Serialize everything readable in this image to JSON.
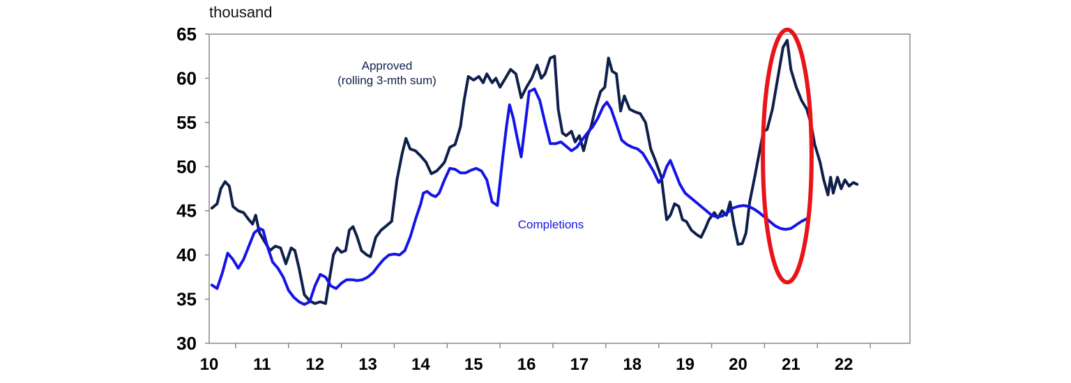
{
  "chart_data": {
    "type": "line",
    "unit_label": "thousand",
    "x_tick_labels": [
      "10",
      "11",
      "12",
      "13",
      "14",
      "15",
      "16",
      "17",
      "18",
      "19",
      "20",
      "21",
      "22"
    ],
    "ylim": [
      30,
      65
    ],
    "y_ticks": [
      30,
      35,
      40,
      45,
      50,
      55,
      60,
      65
    ],
    "xlim": [
      2009.5,
      2022.75
    ],
    "grid": false,
    "series": [
      {
        "name": "Approved",
        "label_lines": [
          "Approved",
          "(rolling 3-mth sum)"
        ],
        "color": "#0f1f4b",
        "points": [
          [
            2009.55,
            45.3
          ],
          [
            2009.65,
            45.8
          ],
          [
            2009.72,
            47.5
          ],
          [
            2009.8,
            48.3
          ],
          [
            2009.88,
            47.8
          ],
          [
            2009.95,
            45.5
          ],
          [
            2010.05,
            45.0
          ],
          [
            2010.15,
            44.8
          ],
          [
            2010.25,
            44.0
          ],
          [
            2010.32,
            43.5
          ],
          [
            2010.38,
            44.5
          ],
          [
            2010.45,
            42.5
          ],
          [
            2010.55,
            41.5
          ],
          [
            2010.65,
            40.5
          ],
          [
            2010.75,
            41.0
          ],
          [
            2010.85,
            40.8
          ],
          [
            2010.95,
            39.0
          ],
          [
            2011.05,
            40.8
          ],
          [
            2011.12,
            40.5
          ],
          [
            2011.2,
            38.5
          ],
          [
            2011.3,
            35.5
          ],
          [
            2011.4,
            34.8
          ],
          [
            2011.5,
            34.5
          ],
          [
            2011.6,
            34.7
          ],
          [
            2011.7,
            34.5
          ],
          [
            2011.78,
            37.5
          ],
          [
            2011.85,
            40.0
          ],
          [
            2011.92,
            40.8
          ],
          [
            2012.0,
            40.3
          ],
          [
            2012.08,
            40.5
          ],
          [
            2012.15,
            42.8
          ],
          [
            2012.22,
            43.2
          ],
          [
            2012.3,
            42.0
          ],
          [
            2012.38,
            40.5
          ],
          [
            2012.48,
            40.0
          ],
          [
            2012.55,
            39.8
          ],
          [
            2012.65,
            42.0
          ],
          [
            2012.75,
            42.8
          ],
          [
            2012.85,
            43.3
          ],
          [
            2012.95,
            43.8
          ],
          [
            2013.05,
            48.5
          ],
          [
            2013.15,
            51.5
          ],
          [
            2013.22,
            53.2
          ],
          [
            2013.3,
            52.0
          ],
          [
            2013.4,
            51.8
          ],
          [
            2013.5,
            51.2
          ],
          [
            2013.6,
            50.5
          ],
          [
            2013.7,
            49.2
          ],
          [
            2013.8,
            49.5
          ],
          [
            2013.88,
            50.0
          ],
          [
            2013.95,
            50.5
          ],
          [
            2014.05,
            52.2
          ],
          [
            2014.15,
            52.5
          ],
          [
            2014.25,
            54.5
          ],
          [
            2014.32,
            57.5
          ],
          [
            2014.4,
            60.2
          ],
          [
            2014.5,
            59.8
          ],
          [
            2014.6,
            60.2
          ],
          [
            2014.68,
            59.5
          ],
          [
            2014.75,
            60.5
          ],
          [
            2014.85,
            59.5
          ],
          [
            2014.92,
            60.0
          ],
          [
            2015.0,
            59.0
          ],
          [
            2015.1,
            60.0
          ],
          [
            2015.2,
            61.0
          ],
          [
            2015.3,
            60.5
          ],
          [
            2015.4,
            57.8
          ],
          [
            2015.5,
            59.0
          ],
          [
            2015.6,
            60.0
          ],
          [
            2015.7,
            61.5
          ],
          [
            2015.78,
            60.0
          ],
          [
            2015.85,
            60.5
          ],
          [
            2015.95,
            62.3
          ],
          [
            2016.03,
            62.5
          ],
          [
            2016.1,
            56.5
          ],
          [
            2016.18,
            53.8
          ],
          [
            2016.25,
            53.5
          ],
          [
            2016.35,
            54.0
          ],
          [
            2016.42,
            52.8
          ],
          [
            2016.5,
            53.5
          ],
          [
            2016.58,
            51.8
          ],
          [
            2016.65,
            53.5
          ],
          [
            2016.72,
            54.5
          ],
          [
            2016.8,
            56.5
          ],
          [
            2016.9,
            58.5
          ],
          [
            2016.98,
            59.0
          ],
          [
            2017.05,
            62.3
          ],
          [
            2017.12,
            60.8
          ],
          [
            2017.2,
            60.5
          ],
          [
            2017.28,
            56.3
          ],
          [
            2017.35,
            58.0
          ],
          [
            2017.45,
            56.5
          ],
          [
            2017.55,
            56.2
          ],
          [
            2017.65,
            56.0
          ],
          [
            2017.75,
            55.0
          ],
          [
            2017.85,
            52.0
          ],
          [
            2017.95,
            50.5
          ],
          [
            2018.05,
            48.8
          ],
          [
            2018.15,
            44.0
          ],
          [
            2018.22,
            44.5
          ],
          [
            2018.3,
            45.8
          ],
          [
            2018.38,
            45.5
          ],
          [
            2018.45,
            44.0
          ],
          [
            2018.52,
            43.8
          ],
          [
            2018.62,
            42.8
          ],
          [
            2018.72,
            42.3
          ],
          [
            2018.8,
            42.0
          ],
          [
            2018.88,
            43.0
          ],
          [
            2018.95,
            44.0
          ],
          [
            2019.05,
            44.8
          ],
          [
            2019.12,
            44.2
          ],
          [
            2019.2,
            45.0
          ],
          [
            2019.28,
            44.5
          ],
          [
            2019.35,
            46.0
          ],
          [
            2019.42,
            43.5
          ],
          [
            2019.5,
            41.2
          ],
          [
            2019.58,
            41.3
          ],
          [
            2019.65,
            42.5
          ],
          [
            2019.72,
            46.0
          ],
          [
            2019.82,
            49.0
          ],
          [
            2019.9,
            51.5
          ],
          [
            2019.98,
            54.0
          ],
          [
            2020.05,
            54.2
          ],
          [
            2020.15,
            56.5
          ],
          [
            2020.25,
            60.0
          ],
          [
            2020.35,
            63.5
          ],
          [
            2020.43,
            64.3
          ],
          [
            2020.5,
            61.0
          ],
          [
            2020.6,
            59.0
          ],
          [
            2020.7,
            57.5
          ],
          [
            2020.8,
            56.5
          ],
          [
            2020.88,
            54.8
          ],
          [
            2020.95,
            52.5
          ],
          [
            2021.05,
            50.5
          ],
          [
            2021.12,
            48.5
          ],
          [
            2021.2,
            46.8
          ],
          [
            2021.25,
            48.8
          ],
          [
            2021.3,
            47.0
          ],
          [
            2021.38,
            48.8
          ],
          [
            2021.45,
            47.5
          ],
          [
            2021.52,
            48.5
          ],
          [
            2021.6,
            47.8
          ],
          [
            2021.68,
            48.2
          ],
          [
            2021.75,
            48.0
          ]
        ]
      },
      {
        "name": "Completions",
        "label_lines": [
          "Completions"
        ],
        "color": "#1414e8",
        "points": [
          [
            2009.55,
            36.6
          ],
          [
            2009.65,
            36.2
          ],
          [
            2009.75,
            38.0
          ],
          [
            2009.85,
            40.2
          ],
          [
            2009.95,
            39.5
          ],
          [
            2010.05,
            38.5
          ],
          [
            2010.15,
            39.5
          ],
          [
            2010.25,
            41.0
          ],
          [
            2010.35,
            42.5
          ],
          [
            2010.45,
            43.0
          ],
          [
            2010.52,
            42.8
          ],
          [
            2010.6,
            41.0
          ],
          [
            2010.7,
            39.2
          ],
          [
            2010.8,
            38.5
          ],
          [
            2010.9,
            37.5
          ],
          [
            2011.0,
            36.0
          ],
          [
            2011.1,
            35.2
          ],
          [
            2011.2,
            34.7
          ],
          [
            2011.3,
            34.4
          ],
          [
            2011.4,
            34.7
          ],
          [
            2011.5,
            36.5
          ],
          [
            2011.6,
            37.8
          ],
          [
            2011.7,
            37.5
          ],
          [
            2011.8,
            36.5
          ],
          [
            2011.9,
            36.2
          ],
          [
            2012.0,
            36.8
          ],
          [
            2012.1,
            37.2
          ],
          [
            2012.2,
            37.2
          ],
          [
            2012.3,
            37.1
          ],
          [
            2012.4,
            37.2
          ],
          [
            2012.5,
            37.5
          ],
          [
            2012.6,
            38.0
          ],
          [
            2012.7,
            38.8
          ],
          [
            2012.8,
            39.5
          ],
          [
            2012.9,
            40.0
          ],
          [
            2013.0,
            40.1
          ],
          [
            2013.1,
            40.0
          ],
          [
            2013.2,
            40.5
          ],
          [
            2013.3,
            42.0
          ],
          [
            2013.4,
            44.0
          ],
          [
            2013.5,
            45.8
          ],
          [
            2013.55,
            47.0
          ],
          [
            2013.62,
            47.2
          ],
          [
            2013.7,
            46.8
          ],
          [
            2013.78,
            46.6
          ],
          [
            2013.85,
            47.0
          ],
          [
            2013.95,
            48.5
          ],
          [
            2014.05,
            49.8
          ],
          [
            2014.15,
            49.7
          ],
          [
            2014.25,
            49.3
          ],
          [
            2014.35,
            49.3
          ],
          [
            2014.45,
            49.6
          ],
          [
            2014.55,
            49.8
          ],
          [
            2014.65,
            49.5
          ],
          [
            2014.75,
            48.5
          ],
          [
            2014.85,
            46.0
          ],
          [
            2014.95,
            45.6
          ],
          [
            2015.05,
            51.0
          ],
          [
            2015.12,
            54.5
          ],
          [
            2015.18,
            57.0
          ],
          [
            2015.25,
            55.5
          ],
          [
            2015.35,
            52.5
          ],
          [
            2015.4,
            51.1
          ],
          [
            2015.48,
            55.0
          ],
          [
            2015.55,
            58.5
          ],
          [
            2015.65,
            58.8
          ],
          [
            2015.75,
            57.5
          ],
          [
            2015.85,
            55.0
          ],
          [
            2015.95,
            52.6
          ],
          [
            2016.05,
            52.6
          ],
          [
            2016.15,
            52.8
          ],
          [
            2016.25,
            52.3
          ],
          [
            2016.35,
            51.8
          ],
          [
            2016.45,
            52.2
          ],
          [
            2016.55,
            53.0
          ],
          [
            2016.65,
            53.8
          ],
          [
            2016.75,
            54.5
          ],
          [
            2016.85,
            55.5
          ],
          [
            2016.95,
            56.8
          ],
          [
            2017.02,
            57.3
          ],
          [
            2017.1,
            56.5
          ],
          [
            2017.2,
            54.8
          ],
          [
            2017.3,
            53.0
          ],
          [
            2017.4,
            52.5
          ],
          [
            2017.5,
            52.2
          ],
          [
            2017.6,
            52.0
          ],
          [
            2017.7,
            51.5
          ],
          [
            2017.8,
            50.5
          ],
          [
            2017.9,
            49.5
          ],
          [
            2018.0,
            48.2
          ],
          [
            2018.08,
            48.8
          ],
          [
            2018.15,
            50.0
          ],
          [
            2018.22,
            50.7
          ],
          [
            2018.3,
            49.5
          ],
          [
            2018.4,
            48.0
          ],
          [
            2018.5,
            47.0
          ],
          [
            2018.6,
            46.5
          ],
          [
            2018.7,
            46.0
          ],
          [
            2018.8,
            45.5
          ],
          [
            2018.9,
            45.0
          ],
          [
            2019.0,
            44.5
          ],
          [
            2019.1,
            44.3
          ],
          [
            2019.2,
            44.4
          ],
          [
            2019.3,
            44.8
          ],
          [
            2019.4,
            45.3
          ],
          [
            2019.5,
            45.5
          ],
          [
            2019.6,
            45.6
          ],
          [
            2019.7,
            45.5
          ],
          [
            2019.8,
            45.2
          ],
          [
            2019.9,
            44.8
          ],
          [
            2020.0,
            44.3
          ],
          [
            2020.1,
            43.8
          ],
          [
            2020.2,
            43.3
          ],
          [
            2020.3,
            43.0
          ],
          [
            2020.4,
            42.9
          ],
          [
            2020.5,
            43.0
          ],
          [
            2020.6,
            43.4
          ],
          [
            2020.7,
            43.8
          ],
          [
            2020.8,
            44.1
          ]
        ]
      }
    ],
    "annotations": [
      {
        "type": "ellipse",
        "color": "#e8141a",
        "center_x": 2020.43,
        "center_y": 51.2,
        "rx_years": 0.46,
        "ry_units": 14.3
      }
    ]
  }
}
